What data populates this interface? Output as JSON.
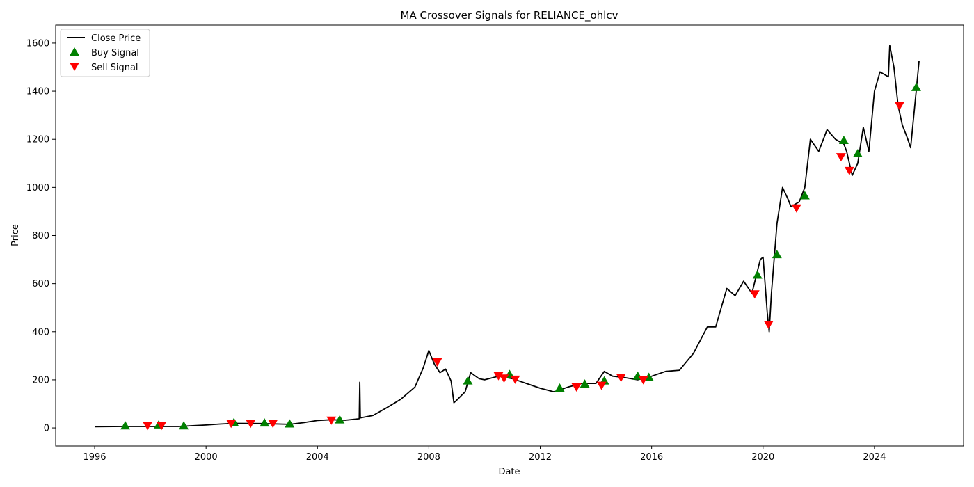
{
  "chart_data": {
    "type": "line",
    "title": "MA Crossover Signals for RELIANCE_ohlcv",
    "xlabel": "Date",
    "ylabel": "Price",
    "xlim": [
      1994.6,
      2027.2
    ],
    "ylim": [
      -75,
      1675
    ],
    "x_ticks": [
      {
        "value": 1996,
        "label": "1996"
      },
      {
        "value": 2000,
        "label": "2000"
      },
      {
        "value": 2004,
        "label": "2004"
      },
      {
        "value": 2008,
        "label": "2008"
      },
      {
        "value": 2012,
        "label": "2012"
      },
      {
        "value": 2016,
        "label": "2016"
      },
      {
        "value": 2020,
        "label": "2020"
      },
      {
        "value": 2024,
        "label": "2024"
      }
    ],
    "y_ticks": [
      {
        "value": 0,
        "label": "0"
      },
      {
        "value": 200,
        "label": "200"
      },
      {
        "value": 400,
        "label": "400"
      },
      {
        "value": 600,
        "label": "600"
      },
      {
        "value": 800,
        "label": "800"
      },
      {
        "value": 1000,
        "label": "1000"
      },
      {
        "value": 1200,
        "label": "1200"
      },
      {
        "value": 1400,
        "label": "1400"
      },
      {
        "value": 1600,
        "label": "1600"
      }
    ],
    "grid": false,
    "legend": {
      "placement": "top-left",
      "entries": [
        {
          "name": "Close Price",
          "marker": "line",
          "color": "#000000"
        },
        {
          "name": "Buy Signal",
          "marker": "triangle-up",
          "color": "#008000"
        },
        {
          "name": "Sell Signal",
          "marker": "triangle-down",
          "color": "#ff0000"
        }
      ]
    },
    "series": [
      {
        "name": "Close Price",
        "type": "line",
        "color": "#000000",
        "points": [
          [
            1996.0,
            5
          ],
          [
            1997.0,
            6
          ],
          [
            1998.0,
            6
          ],
          [
            1999.0,
            6
          ],
          [
            2000.0,
            12
          ],
          [
            2000.5,
            16
          ],
          [
            2001.0,
            19
          ],
          [
            2002.0,
            18
          ],
          [
            2003.0,
            15
          ],
          [
            2003.5,
            22
          ],
          [
            2004.0,
            31
          ],
          [
            2004.5,
            34
          ],
          [
            2005.0,
            32
          ],
          [
            2005.5,
            38
          ],
          [
            2005.52,
            190
          ],
          [
            2005.54,
            42
          ],
          [
            2006.0,
            52
          ],
          [
            2006.5,
            85
          ],
          [
            2007.0,
            120
          ],
          [
            2007.5,
            170
          ],
          [
            2007.8,
            250
          ],
          [
            2008.0,
            322
          ],
          [
            2008.2,
            265
          ],
          [
            2008.4,
            230
          ],
          [
            2008.6,
            245
          ],
          [
            2008.8,
            195
          ],
          [
            2008.9,
            105
          ],
          [
            2009.0,
            115
          ],
          [
            2009.3,
            150
          ],
          [
            2009.5,
            230
          ],
          [
            2009.8,
            205
          ],
          [
            2010.0,
            200
          ],
          [
            2010.5,
            215
          ],
          [
            2011.0,
            205
          ],
          [
            2011.5,
            185
          ],
          [
            2012.0,
            165
          ],
          [
            2012.5,
            150
          ],
          [
            2013.0,
            170
          ],
          [
            2013.5,
            185
          ],
          [
            2014.0,
            185
          ],
          [
            2014.3,
            235
          ],
          [
            2014.6,
            215
          ],
          [
            2015.0,
            210
          ],
          [
            2015.5,
            200
          ],
          [
            2016.0,
            215
          ],
          [
            2016.5,
            235
          ],
          [
            2017.0,
            240
          ],
          [
            2017.5,
            310
          ],
          [
            2018.0,
            420
          ],
          [
            2018.3,
            420
          ],
          [
            2018.7,
            580
          ],
          [
            2019.0,
            550
          ],
          [
            2019.3,
            610
          ],
          [
            2019.6,
            560
          ],
          [
            2019.9,
            700
          ],
          [
            2020.0,
            710
          ],
          [
            2020.15,
            480
          ],
          [
            2020.22,
            400
          ],
          [
            2020.3,
            560
          ],
          [
            2020.5,
            850
          ],
          [
            2020.7,
            1000
          ],
          [
            2020.9,
            950
          ],
          [
            2021.0,
            920
          ],
          [
            2021.3,
            940
          ],
          [
            2021.5,
            1000
          ],
          [
            2021.7,
            1200
          ],
          [
            2022.0,
            1150
          ],
          [
            2022.3,
            1240
          ],
          [
            2022.6,
            1200
          ],
          [
            2022.9,
            1180
          ],
          [
            2023.0,
            1150
          ],
          [
            2023.2,
            1050
          ],
          [
            2023.4,
            1100
          ],
          [
            2023.6,
            1250
          ],
          [
            2023.8,
            1150
          ],
          [
            2024.0,
            1400
          ],
          [
            2024.2,
            1480
          ],
          [
            2024.5,
            1460
          ],
          [
            2024.55,
            1590
          ],
          [
            2024.7,
            1500
          ],
          [
            2024.85,
            1340
          ],
          [
            2025.0,
            1260
          ],
          [
            2025.2,
            1200
          ],
          [
            2025.3,
            1165
          ],
          [
            2025.5,
            1400
          ],
          [
            2025.6,
            1525
          ]
        ]
      },
      {
        "name": "Buy Signal",
        "type": "scatter",
        "marker": "triangle-up",
        "color": "#008000",
        "points": [
          [
            1997.1,
            8
          ],
          [
            1998.3,
            12
          ],
          [
            1999.2,
            8
          ],
          [
            2001.0,
            22
          ],
          [
            2002.1,
            20
          ],
          [
            2003.0,
            16
          ],
          [
            2004.8,
            33
          ],
          [
            2009.4,
            195
          ],
          [
            2010.9,
            222
          ],
          [
            2012.7,
            165
          ],
          [
            2013.6,
            182
          ],
          [
            2014.3,
            195
          ],
          [
            2015.5,
            215
          ],
          [
            2015.9,
            210
          ],
          [
            2019.8,
            635
          ],
          [
            2020.5,
            720
          ],
          [
            2021.5,
            965
          ],
          [
            2022.9,
            1195
          ],
          [
            2023.4,
            1140
          ],
          [
            2025.5,
            1415
          ]
        ]
      },
      {
        "name": "Sell Signal",
        "type": "scatter",
        "marker": "triangle-down",
        "color": "#ff0000",
        "points": [
          [
            1997.9,
            8
          ],
          [
            1998.4,
            8
          ],
          [
            2000.9,
            17
          ],
          [
            2001.6,
            17
          ],
          [
            2002.4,
            17
          ],
          [
            2004.5,
            30
          ],
          [
            2008.3,
            272
          ],
          [
            2010.5,
            215
          ],
          [
            2010.7,
            205
          ],
          [
            2011.1,
            200
          ],
          [
            2013.3,
            168
          ],
          [
            2014.2,
            175
          ],
          [
            2014.9,
            208
          ],
          [
            2015.7,
            198
          ],
          [
            2019.7,
            555
          ],
          [
            2020.2,
            428
          ],
          [
            2021.2,
            912
          ],
          [
            2022.8,
            1125
          ],
          [
            2023.1,
            1068
          ],
          [
            2024.9,
            1338
          ]
        ]
      }
    ]
  }
}
